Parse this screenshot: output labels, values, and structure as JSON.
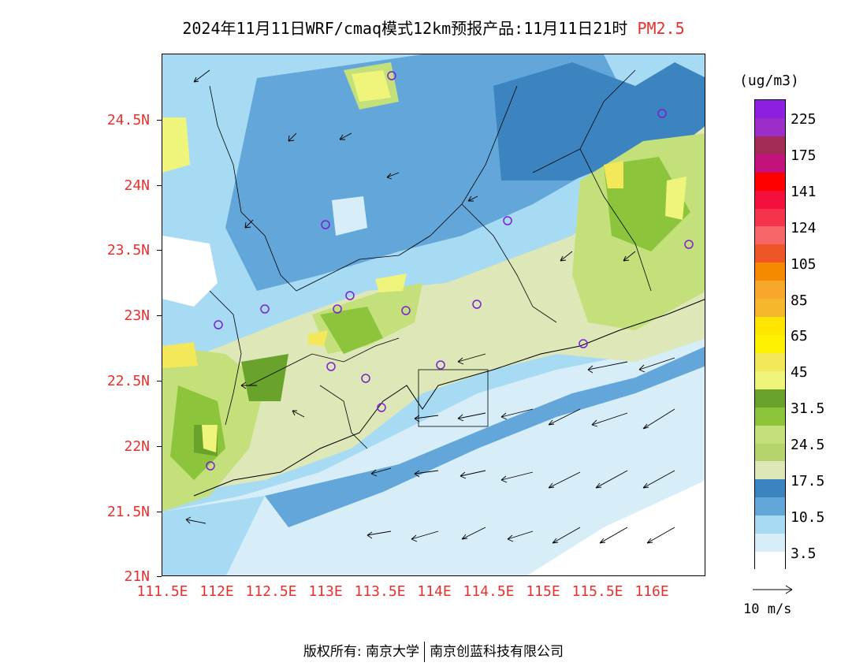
{
  "title": {
    "text": "2024年11月11日WRF/cmaq模式12km预报产品:11月11日21时",
    "variable": "PM2.5"
  },
  "axes": {
    "y_ticks": [
      "24.5N",
      "24N",
      "23.5N",
      "23N",
      "22.5N",
      "22N",
      "21.5N",
      "21N"
    ],
    "x_ticks": [
      "111.5E",
      "112E",
      "112.5E",
      "113E",
      "113.5E",
      "114E",
      "114.5E",
      "115E",
      "115.5E",
      "116E"
    ]
  },
  "legend": {
    "unit": "(ug/m3)",
    "labels": [
      "225",
      "175",
      "141",
      "124",
      "105",
      "85",
      "65",
      "45",
      "31.5",
      "24.5",
      "17.5",
      "10.5",
      "3.5"
    ],
    "colors": [
      "#8c1fe0",
      "#9b2ec8",
      "#a42b58",
      "#c4127c",
      "#ff0000",
      "#f50f3c",
      "#f5334d",
      "#f76768",
      "#ef5627",
      "#f58a00",
      "#f7a82a",
      "#f5b82d",
      "#ffe600",
      "#fff200",
      "#f3e85a",
      "#eff47a",
      "#6aa32c",
      "#8cc43b",
      "#c4e07a",
      "#b5d46b",
      "#dde7b7",
      "#3c84c0",
      "#63a7da",
      "#a7dbf4",
      "#d7eef9",
      "#ffffff"
    ]
  },
  "wind_reference": {
    "label": "10 m/s"
  },
  "copyright": {
    "left": "版权所有: 南京大学",
    "right": "南京创蓝科技有限公司"
  }
}
